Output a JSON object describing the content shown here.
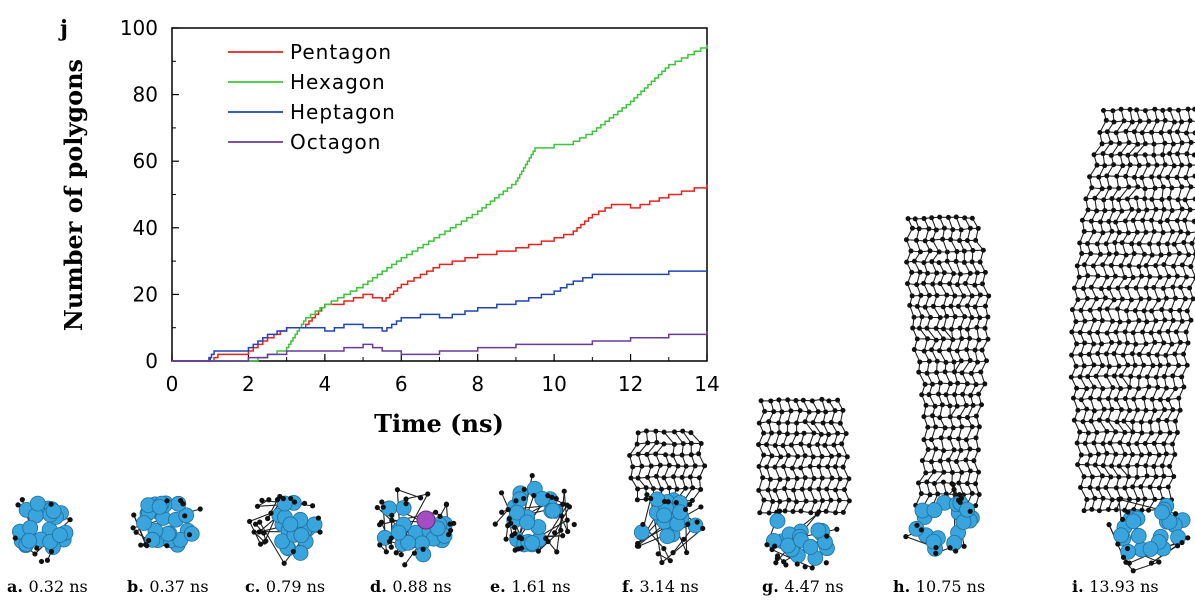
{
  "panel_letter": "j",
  "chart_data": {
    "type": "line",
    "title": "",
    "xlabel": "Time (ns)",
    "ylabel": "Number of polygons",
    "xlim": [
      0,
      14
    ],
    "ylim": [
      0,
      100
    ],
    "xticks": [
      0,
      2,
      4,
      6,
      8,
      10,
      12,
      14
    ],
    "yticks": [
      0,
      20,
      40,
      60,
      80,
      100
    ],
    "legend_position": "top-left",
    "series": [
      {
        "name": "Pentagon",
        "color": "#e8231f",
        "x": [
          0,
          1.0,
          1.2,
          2.0,
          2.5,
          3.0,
          3.5,
          4.0,
          4.5,
          5.0,
          5.5,
          6.0,
          6.5,
          7.0,
          8.0,
          9.0,
          10.0,
          10.5,
          11.0,
          11.5,
          12.0,
          13.0,
          14.0
        ],
        "y": [
          0,
          0,
          2,
          3,
          7,
          10,
          11,
          17,
          18,
          20,
          18,
          23,
          26,
          29,
          32,
          34,
          37,
          39,
          44,
          47,
          46,
          50,
          53
        ]
      },
      {
        "name": "Hexagon",
        "color": "#3ec43a",
        "x": [
          0,
          1.0,
          2.0,
          3.0,
          3.5,
          4.0,
          4.5,
          5.0,
          5.5,
          6.0,
          7.0,
          8.0,
          9.0,
          9.5,
          10.0,
          10.5,
          11.0,
          12.0,
          13.0,
          14.0
        ],
        "y": [
          0,
          0,
          0,
          4,
          13,
          17,
          20,
          23,
          27,
          31,
          38,
          45,
          54,
          64,
          65,
          66,
          69,
          78,
          89,
          95
        ]
      },
      {
        "name": "Heptagon",
        "color": "#2044b8",
        "x": [
          0,
          0.9,
          1.1,
          2.0,
          2.5,
          3.0,
          3.5,
          4.0,
          4.5,
          5.0,
          5.5,
          6.0,
          6.5,
          7.0,
          8.0,
          9.0,
          10.0,
          10.5,
          11.0,
          12.0,
          13.0,
          14.0
        ],
        "y": [
          0,
          0,
          3,
          4,
          8,
          10,
          10,
          9,
          11,
          10,
          9,
          13,
          14,
          13,
          16,
          18,
          21,
          24,
          26,
          26,
          27,
          27
        ]
      },
      {
        "name": "Octagon",
        "color": "#6a3a9e",
        "x": [
          0,
          1.0,
          2.0,
          2.5,
          3.0,
          4.0,
          5.0,
          5.5,
          6.0,
          7.0,
          8.0,
          9.0,
          10.0,
          11.0,
          12.0,
          13.0,
          14.0
        ],
        "y": [
          0,
          0,
          1,
          2,
          3,
          3,
          5,
          3,
          2,
          3,
          4,
          5,
          5,
          6,
          7,
          8,
          9
        ]
      }
    ]
  },
  "snapshots": [
    {
      "letter": "a.",
      "time": "0.32 ns"
    },
    {
      "letter": "b.",
      "time": "0.37 ns"
    },
    {
      "letter": "c.",
      "time": "0.79 ns"
    },
    {
      "letter": "d.",
      "time": "0.88 ns"
    },
    {
      "letter": "e.",
      "time": "1.61 ns"
    },
    {
      "letter": "f.",
      "time": "3.14 ns"
    },
    {
      "letter": "g.",
      "time": "4.47 ns"
    },
    {
      "letter": "h.",
      "time": "10.75 ns"
    },
    {
      "letter": "i.",
      "time": "13.93 ns"
    }
  ]
}
